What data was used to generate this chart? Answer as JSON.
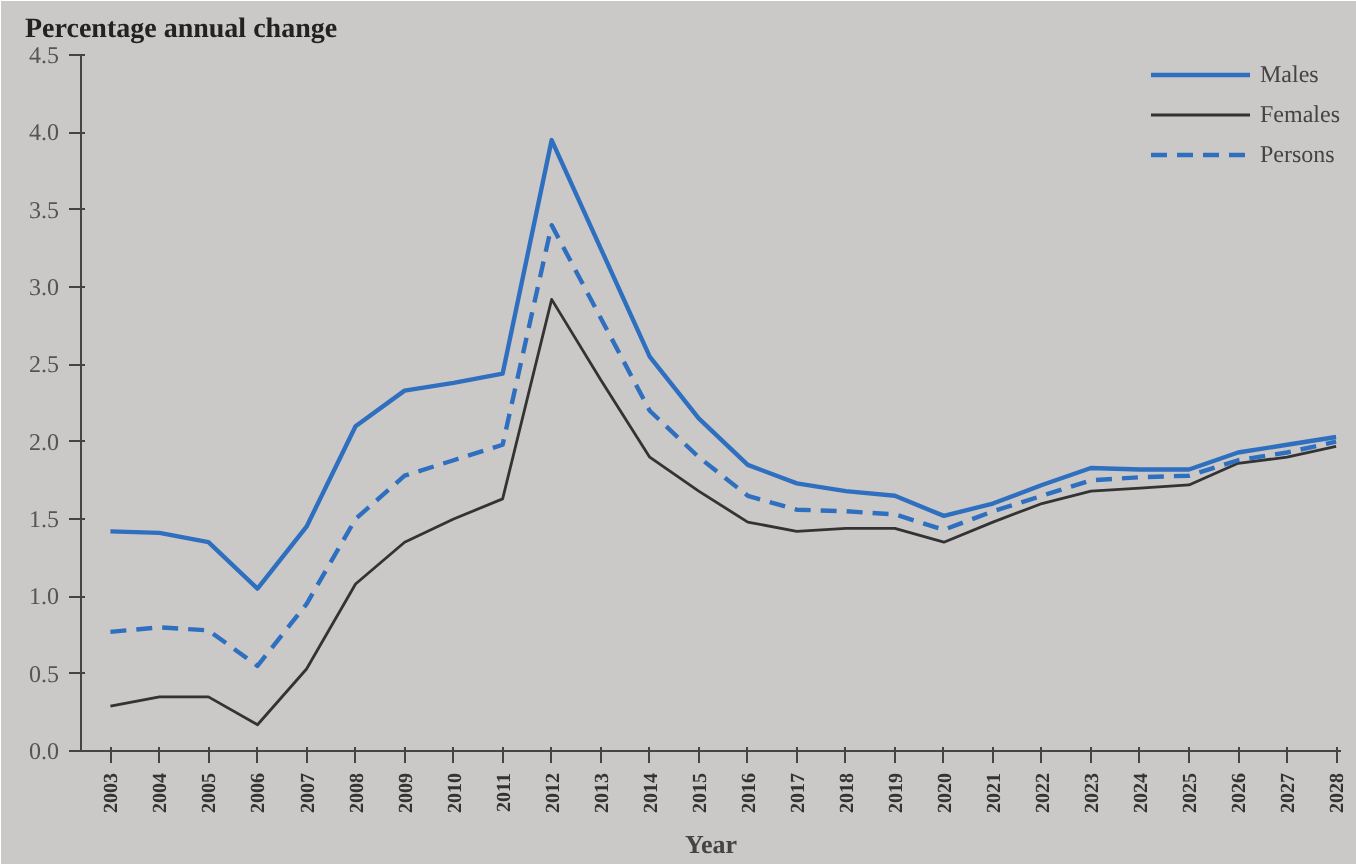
{
  "chart_data": {
    "type": "line",
    "title": "Percentage annual change",
    "xlabel": "Year",
    "categories": [
      "2003",
      "2004",
      "2005",
      "2006",
      "2007",
      "2008",
      "2009",
      "2010",
      "2011",
      "2012",
      "2013",
      "2014",
      "2015",
      "2016",
      "2017",
      "2018",
      "2019",
      "2020",
      "2021",
      "2022",
      "2023",
      "2024",
      "2025",
      "2026",
      "2027",
      "2028"
    ],
    "ylim": [
      0,
      4.5
    ],
    "yticks": [
      {
        "value": 0,
        "label": "0.0"
      },
      0.5,
      {
        "value": 1,
        "label": "1.0"
      },
      1.5,
      {
        "value": 2,
        "label": "2.0"
      },
      2.5,
      {
        "value": 3,
        "label": "3.0"
      },
      3.5,
      {
        "value": 4,
        "label": "4.0"
      },
      4.5
    ],
    "grid": false,
    "legend": "top right",
    "series": [
      {
        "name": "Males",
        "color": "#2f6fc0",
        "line_style": "solid",
        "values": [
          1.42,
          1.41,
          1.35,
          1.05,
          1.45,
          2.1,
          2.33,
          2.38,
          2.44,
          3.95,
          3.25,
          2.55,
          2.15,
          1.85,
          1.73,
          1.68,
          1.65,
          1.52,
          1.6,
          1.72,
          1.83,
          1.82,
          1.82,
          1.93,
          1.98,
          2.03
        ]
      },
      {
        "name": "Females",
        "color": "#333333",
        "line_style": "solid",
        "values": [
          0.29,
          0.35,
          0.35,
          0.17,
          0.53,
          1.08,
          1.35,
          1.5,
          1.63,
          2.92,
          2.4,
          1.9,
          1.68,
          1.48,
          1.42,
          1.44,
          1.44,
          1.35,
          1.48,
          1.6,
          1.68,
          1.7,
          1.72,
          1.86,
          1.9,
          1.97
        ]
      },
      {
        "name": "Persons",
        "color": "#2f6fc0",
        "line_style": "dashed",
        "values": [
          0.77,
          0.8,
          0.78,
          0.55,
          0.95,
          1.5,
          1.78,
          1.88,
          1.98,
          3.4,
          2.8,
          2.2,
          1.9,
          1.65,
          1.56,
          1.55,
          1.53,
          1.43,
          1.55,
          1.65,
          1.75,
          1.77,
          1.78,
          1.88,
          1.93,
          2.0
        ]
      }
    ]
  }
}
